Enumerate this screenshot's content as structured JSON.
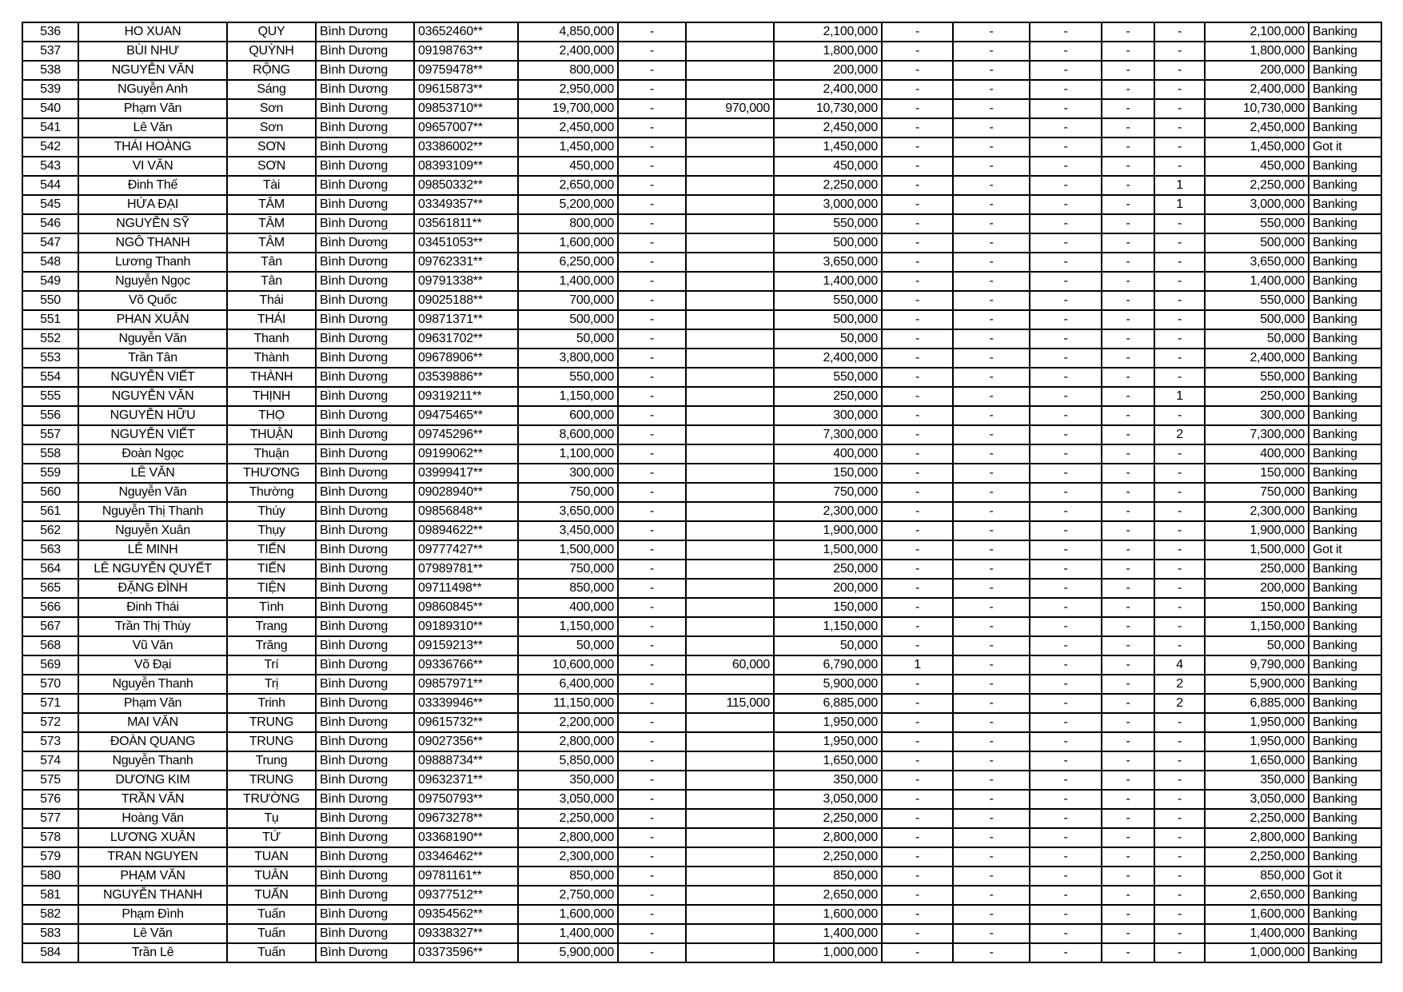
{
  "table": {
    "rows": [
      [
        "536",
        "HO XUAN",
        "QUY",
        "Bình Dương",
        "03652460**",
        "4,850,000",
        "-",
        "",
        "2,100,000",
        "-",
        "-",
        "-",
        "-",
        "-",
        "2,100,000",
        "Banking"
      ],
      [
        "537",
        "BÙI NHƯ",
        "QUỲNH",
        "Bình Dương",
        "09198763**",
        "2,400,000",
        "-",
        "",
        "1,800,000",
        "-",
        "-",
        "-",
        "-",
        "-",
        "1,800,000",
        "Banking"
      ],
      [
        "538",
        "NGUYỄN VĂN",
        "RỘNG",
        "Bình Dương",
        "09759478**",
        "800,000",
        "-",
        "",
        "200,000",
        "-",
        "-",
        "-",
        "-",
        "-",
        "200,000",
        "Banking"
      ],
      [
        "539",
        "NGuyễn Anh",
        "Sáng",
        "Bình Dương",
        "09615873**",
        "2,950,000",
        "-",
        "",
        "2,400,000",
        "-",
        "-",
        "-",
        "-",
        "-",
        "2,400,000",
        "Banking"
      ],
      [
        "540",
        "Phạm Văn",
        "Sơn",
        "Bình Dương",
        "09853710**",
        "19,700,000",
        "-",
        "970,000",
        "10,730,000",
        "-",
        "-",
        "-",
        "-",
        "-",
        "10,730,000",
        "Banking"
      ],
      [
        "541",
        "Lê Văn",
        "Sơn",
        "Bình Dương",
        "09657007**",
        "2,450,000",
        "-",
        "",
        "2,450,000",
        "-",
        "-",
        "-",
        "-",
        "-",
        "2,450,000",
        "Banking"
      ],
      [
        "542",
        "THÁI HOÀNG",
        "SƠN",
        "Bình Dương",
        "03386002**",
        "1,450,000",
        "-",
        "",
        "1,450,000",
        "-",
        "-",
        "-",
        "-",
        "-",
        "1,450,000",
        "Got it"
      ],
      [
        "543",
        "VI VĂN",
        "SƠN",
        "Bình Dương",
        "08393109**",
        "450,000",
        "-",
        "",
        "450,000",
        "-",
        "-",
        "-",
        "-",
        "-",
        "450,000",
        "Banking"
      ],
      [
        "544",
        "Đinh Thế",
        "Tài",
        "Bình Dương",
        "09850332**",
        "2,650,000",
        "-",
        "",
        "2,250,000",
        "-",
        "-",
        "-",
        "-",
        "1",
        "2,250,000",
        "Banking"
      ],
      [
        "545",
        "HỨA ĐẠI",
        "TÂM",
        "Bình Dương",
        "03349357**",
        "5,200,000",
        "-",
        "",
        "3,000,000",
        "-",
        "-",
        "-",
        "-",
        "1",
        "3,000,000",
        "Banking"
      ],
      [
        "546",
        "NGUYỄN SỸ",
        "TÂM",
        "Bình Dương",
        "03561811**",
        "800,000",
        "-",
        "",
        "550,000",
        "-",
        "-",
        "-",
        "-",
        "-",
        "550,000",
        "Banking"
      ],
      [
        "547",
        "NGÔ THANH",
        "TÂM",
        "Bình Dương",
        "03451053**",
        "1,600,000",
        "-",
        "",
        "500,000",
        "-",
        "-",
        "-",
        "-",
        "-",
        "500,000",
        "Banking"
      ],
      [
        "548",
        "Lương Thanh",
        "Tân",
        "Bình Dương",
        "09762331**",
        "6,250,000",
        "-",
        "",
        "3,650,000",
        "-",
        "-",
        "-",
        "-",
        "-",
        "3,650,000",
        "Banking"
      ],
      [
        "549",
        "Nguyễn Ngọc",
        "Tân",
        "Bình Dương",
        "09791338**",
        "1,400,000",
        "-",
        "",
        "1,400,000",
        "-",
        "-",
        "-",
        "-",
        "-",
        "1,400,000",
        "Banking"
      ],
      [
        "550",
        "Võ Quốc",
        "Thái",
        "Bình Dương",
        "09025188**",
        "700,000",
        "-",
        "",
        "550,000",
        "-",
        "-",
        "-",
        "-",
        "-",
        "550,000",
        "Banking"
      ],
      [
        "551",
        "PHAN XUÂN",
        "THÁI",
        "Bình Dương",
        "09871371**",
        "500,000",
        "-",
        "",
        "500,000",
        "-",
        "-",
        "-",
        "-",
        "-",
        "500,000",
        "Banking"
      ],
      [
        "552",
        "Nguyễn Văn",
        "Thanh",
        "Bình Dương",
        "09631702**",
        "50,000",
        "-",
        "",
        "50,000",
        "-",
        "-",
        "-",
        "-",
        "-",
        "50,000",
        "Banking"
      ],
      [
        "553",
        "Trần Tân",
        "Thành",
        "Bình Dương",
        "09678906**",
        "3,800,000",
        "-",
        "",
        "2,400,000",
        "-",
        "-",
        "-",
        "-",
        "-",
        "2,400,000",
        "Banking"
      ],
      [
        "554",
        "NGUYỄN VIẾT",
        "THÀNH",
        "Bình Dương",
        "03539886**",
        "550,000",
        "-",
        "",
        "550,000",
        "-",
        "-",
        "-",
        "-",
        "-",
        "550,000",
        "Banking"
      ],
      [
        "555",
        "NGUYỄN VĂN",
        "THỊNH",
        "Bình Dương",
        "09319211**",
        "1,150,000",
        "-",
        "",
        "250,000",
        "-",
        "-",
        "-",
        "-",
        "1",
        "250,000",
        "Banking"
      ],
      [
        "556",
        "NGUYỄN HỮU",
        "THỌ",
        "Bình Dương",
        "09475465**",
        "600,000",
        "-",
        "",
        "300,000",
        "-",
        "-",
        "-",
        "-",
        "-",
        "300,000",
        "Banking"
      ],
      [
        "557",
        "NGUYỄN VIẾT",
        "THUẬN",
        "Bình Dương",
        "09745296**",
        "8,600,000",
        "-",
        "",
        "7,300,000",
        "-",
        "-",
        "-",
        "-",
        "2",
        "7,300,000",
        "Banking"
      ],
      [
        "558",
        "Đoàn Ngọc",
        "Thuận",
        "Bình Dương",
        "09199062**",
        "1,100,000",
        "-",
        "",
        "400,000",
        "-",
        "-",
        "-",
        "-",
        "-",
        "400,000",
        "Banking"
      ],
      [
        "559",
        "LÊ VĂN",
        "THƯƠNG",
        "Bình Dương",
        "03999417**",
        "300,000",
        "-",
        "",
        "150,000",
        "-",
        "-",
        "-",
        "-",
        "-",
        "150,000",
        "Banking"
      ],
      [
        "560",
        "Nguyễn Văn",
        "Thường",
        "Bình Dương",
        "09028940**",
        "750,000",
        "-",
        "",
        "750,000",
        "-",
        "-",
        "-",
        "-",
        "-",
        "750,000",
        "Banking"
      ],
      [
        "561",
        "Nguyễn Thị Thanh",
        "Thúy",
        "Bình Dương",
        "09856848**",
        "3,650,000",
        "-",
        "",
        "2,300,000",
        "-",
        "-",
        "-",
        "-",
        "-",
        "2,300,000",
        "Banking"
      ],
      [
        "562",
        "Nguyễn Xuân",
        "Thụy",
        "Bình Dương",
        "09894622**",
        "3,450,000",
        "-",
        "",
        "1,900,000",
        "-",
        "-",
        "-",
        "-",
        "-",
        "1,900,000",
        "Banking"
      ],
      [
        "563",
        "LÊ MINH",
        "TIẾN",
        "Bình Dương",
        "09777427**",
        "1,500,000",
        "-",
        "",
        "1,500,000",
        "-",
        "-",
        "-",
        "-",
        "-",
        "1,500,000",
        "Got it"
      ],
      [
        "564",
        "LÊ NGUYỄN QUYẾT",
        "TIẾN",
        "Bình Dương",
        "07989781**",
        "750,000",
        "-",
        "",
        "250,000",
        "-",
        "-",
        "-",
        "-",
        "-",
        "250,000",
        "Banking"
      ],
      [
        "565",
        "ĐẶNG ĐÌNH",
        "TIỆN",
        "Bình Dương",
        "09711498**",
        "850,000",
        "-",
        "",
        "200,000",
        "-",
        "-",
        "-",
        "-",
        "-",
        "200,000",
        "Banking"
      ],
      [
        "566",
        "Đinh Thái",
        "Tình",
        "Bình Dương",
        "09860845**",
        "400,000",
        "-",
        "",
        "150,000",
        "-",
        "-",
        "-",
        "-",
        "-",
        "150,000",
        "Banking"
      ],
      [
        "567",
        "Trần Thị Thùy",
        "Trang",
        "Bình Dương",
        "09189310**",
        "1,150,000",
        "-",
        "",
        "1,150,000",
        "-",
        "-",
        "-",
        "-",
        "-",
        "1,150,000",
        "Banking"
      ],
      [
        "568",
        "Vũ Văn",
        "Trăng",
        "Bình Dương",
        "09159213**",
        "50,000",
        "-",
        "",
        "50,000",
        "-",
        "-",
        "-",
        "-",
        "-",
        "50,000",
        "Banking"
      ],
      [
        "569",
        "Võ Đại",
        "Trí",
        "Bình Dương",
        "09336766**",
        "10,600,000",
        "-",
        "60,000",
        "6,790,000",
        "1",
        "-",
        "-",
        "-",
        "4",
        "9,790,000",
        "Banking"
      ],
      [
        "570",
        "Nguyễn Thanh",
        "Trị",
        "Bình Dương",
        "09857971**",
        "6,400,000",
        "-",
        "",
        "5,900,000",
        "-",
        "-",
        "-",
        "-",
        "2",
        "5,900,000",
        "Banking"
      ],
      [
        "571",
        "Phạm Văn",
        "Trinh",
        "Bình Dương",
        "03339946**",
        "11,150,000",
        "-",
        "115,000",
        "6,885,000",
        "-",
        "-",
        "-",
        "-",
        "2",
        "6,885,000",
        "Banking"
      ],
      [
        "572",
        "MAI VĂN",
        "TRUNG",
        "Bình Dương",
        "09615732**",
        "2,200,000",
        "-",
        "",
        "1,950,000",
        "-",
        "-",
        "-",
        "-",
        "-",
        "1,950,000",
        "Banking"
      ],
      [
        "573",
        "ĐOÀN QUANG",
        "TRUNG",
        "Bình Dương",
        "09027356**",
        "2,800,000",
        "-",
        "",
        "1,950,000",
        "-",
        "-",
        "-",
        "-",
        "-",
        "1,950,000",
        "Banking"
      ],
      [
        "574",
        "Nguyễn Thanh",
        "Trung",
        "Bình Dương",
        "09888734**",
        "5,850,000",
        "-",
        "",
        "1,650,000",
        "-",
        "-",
        "-",
        "-",
        "-",
        "1,650,000",
        "Banking"
      ],
      [
        "575",
        "DƯƠNG KIM",
        "TRUNG",
        "Bình Dương",
        "09632371**",
        "350,000",
        "-",
        "",
        "350,000",
        "-",
        "-",
        "-",
        "-",
        "-",
        "350,000",
        "Banking"
      ],
      [
        "576",
        "TRẦN VĂN",
        "TRƯỜNG",
        "Bình Dương",
        "09750793**",
        "3,050,000",
        "-",
        "",
        "3,050,000",
        "-",
        "-",
        "-",
        "-",
        "-",
        "3,050,000",
        "Banking"
      ],
      [
        "577",
        "Hoàng Văn",
        "Tụ",
        "Bình Dương",
        "09673278**",
        "2,250,000",
        "-",
        "",
        "2,250,000",
        "-",
        "-",
        "-",
        "-",
        "-",
        "2,250,000",
        "Banking"
      ],
      [
        "578",
        "LƯƠNG XUÂN",
        "TỨ",
        "Bình Dương",
        "03368190**",
        "2,800,000",
        "-",
        "",
        "2,800,000",
        "-",
        "-",
        "-",
        "-",
        "-",
        "2,800,000",
        "Banking"
      ],
      [
        "579",
        "TRAN NGUYEN",
        "TUAN",
        "Bình Dương",
        "03346462**",
        "2,300,000",
        "-",
        "",
        "2,250,000",
        "-",
        "-",
        "-",
        "-",
        "-",
        "2,250,000",
        "Banking"
      ],
      [
        "580",
        "PHẠM VĂN",
        "TUÂN",
        "Bình Dương",
        "09781161**",
        "850,000",
        "-",
        "",
        "850,000",
        "-",
        "-",
        "-",
        "-",
        "-",
        "850,000",
        "Got it"
      ],
      [
        "581",
        "NGUYỄN THANH",
        "TUẤN",
        "Bình Dương",
        "09377512**",
        "2,750,000",
        "-",
        "",
        "2,650,000",
        "-",
        "-",
        "-",
        "-",
        "-",
        "2,650,000",
        "Banking"
      ],
      [
        "582",
        "Phạm Đình",
        "Tuấn",
        "Bình Dương",
        "09354562**",
        "1,600,000",
        "-",
        "",
        "1,600,000",
        "-",
        "-",
        "-",
        "-",
        "-",
        "1,600,000",
        "Banking"
      ],
      [
        "583",
        "Lê Văn",
        "Tuấn",
        "Bình Dương",
        "09338327**",
        "1,400,000",
        "-",
        "",
        "1,400,000",
        "-",
        "-",
        "-",
        "-",
        "-",
        "1,400,000",
        "Banking"
      ],
      [
        "584",
        "Trần Lê",
        "Tuấn",
        "Bình Dương",
        "03373596**",
        "5,900,000",
        "-",
        "",
        "1,000,000",
        "-",
        "-",
        "-",
        "-",
        "-",
        "1,000,000",
        "Banking"
      ]
    ]
  }
}
